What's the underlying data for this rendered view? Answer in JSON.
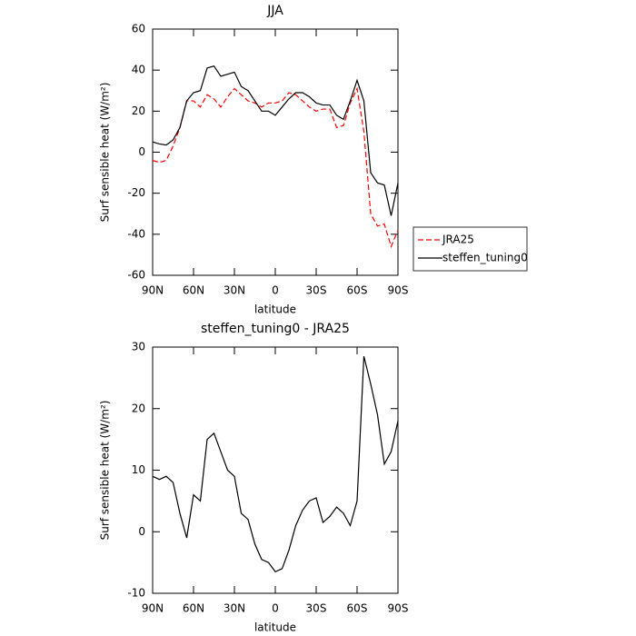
{
  "chart_data": [
    {
      "type": "line",
      "title": "JJA",
      "xlabel": "latitude",
      "ylabel": "Surf sensible heat (W/m²)",
      "x": [
        90,
        85,
        80,
        75,
        70,
        65,
        60,
        55,
        50,
        45,
        40,
        35,
        30,
        25,
        20,
        15,
        10,
        5,
        0,
        -5,
        -10,
        -15,
        -20,
        -25,
        -30,
        -35,
        -40,
        -45,
        -50,
        -55,
        -60,
        -65,
        -70,
        -75,
        -80,
        -85,
        -90
      ],
      "series": [
        {
          "name": "JRA25",
          "color": "#ff0000",
          "style": "dashed",
          "values": [
            -4,
            -5,
            -4,
            3,
            12,
            25,
            25,
            22,
            28,
            26,
            22,
            27,
            31,
            28,
            25,
            24,
            22,
            24,
            24,
            25,
            29,
            28,
            25,
            22,
            20,
            21,
            21,
            12,
            13,
            24,
            31,
            10,
            -30,
            -36,
            -35,
            -46,
            -38
          ]
        },
        {
          "name": "steffen_tuning0",
          "color": "#000000",
          "style": "solid",
          "values": [
            5,
            4,
            3.5,
            6,
            12,
            25,
            29,
            30,
            41,
            42,
            37,
            38,
            39,
            32,
            30,
            25,
            20,
            20,
            18,
            22,
            26,
            29,
            29,
            27,
            24,
            23,
            23,
            18,
            16,
            25,
            35,
            25,
            -10,
            -15,
            -16,
            -31,
            -15
          ]
        }
      ],
      "xlim": [
        90,
        -90
      ],
      "xticks": [
        {
          "value": 90,
          "label": "90N"
        },
        {
          "value": 60,
          "label": "60N"
        },
        {
          "value": 30,
          "label": "30N"
        },
        0,
        {
          "value": -30,
          "label": "30S"
        },
        {
          "value": -60,
          "label": "60S"
        },
        {
          "value": -90,
          "label": "90S"
        }
      ],
      "ylim": [
        -60,
        60
      ],
      "yticks": [
        -60,
        -40,
        -20,
        0,
        20,
        40,
        60
      ],
      "legend": "right"
    },
    {
      "type": "line",
      "title": "steffen_tuning0 - JRA25",
      "xlabel": "latitude",
      "ylabel": "Surf sensible heat (W/m²)",
      "x": [
        90,
        85,
        80,
        75,
        70,
        65,
        60,
        55,
        50,
        45,
        40,
        35,
        30,
        25,
        20,
        15,
        10,
        5,
        0,
        -5,
        -10,
        -15,
        -20,
        -25,
        -30,
        -35,
        -40,
        -45,
        -50,
        -55,
        -60,
        -65,
        -70,
        -75,
        -80,
        -85,
        -90
      ],
      "series": [
        {
          "color": "#000000",
          "style": "solid",
          "values": [
            9,
            8.5,
            9,
            8,
            3,
            -1,
            6,
            5,
            15,
            16,
            13,
            10,
            9,
            3,
            2,
            -2,
            -4.5,
            -5,
            -6.5,
            -6,
            -3,
            1,
            3.5,
            5,
            5.5,
            1.5,
            2.5,
            4,
            3,
            1,
            5,
            28.5,
            24,
            19,
            11,
            13,
            18
          ]
        }
      ],
      "xlim": [
        90,
        -90
      ],
      "xticks": [
        {
          "value": 90,
          "label": "90N"
        },
        {
          "value": 60,
          "label": "60N"
        },
        {
          "value": 30,
          "label": "30N"
        },
        0,
        {
          "value": -30,
          "label": "30S"
        },
        {
          "value": -60,
          "label": "60S"
        },
        {
          "value": -90,
          "label": "90S"
        }
      ],
      "ylim": [
        -10,
        30
      ],
      "yticks": [
        -10,
        0,
        10,
        20,
        30
      ]
    }
  ]
}
